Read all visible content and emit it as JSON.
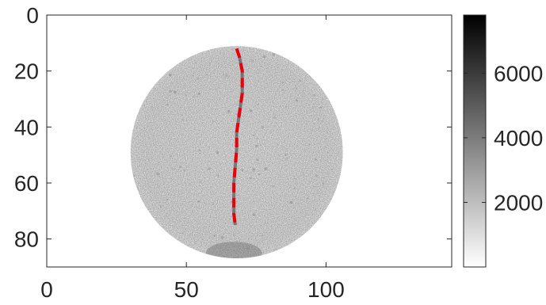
{
  "chart_data": {
    "type": "heatmap",
    "title": "",
    "xlabel": "",
    "ylabel": "",
    "xlim": [
      0,
      145
    ],
    "ylim": [
      90,
      0
    ],
    "x_ticks": [
      0,
      50,
      100
    ],
    "y_ticks": [
      0,
      20,
      40,
      60,
      80
    ],
    "colormap": "gray (white = low, black = high)",
    "colorbar": {
      "range": [
        0,
        7800
      ],
      "ticks": [
        2000,
        4000,
        6000
      ],
      "location": "right"
    },
    "disc": {
      "center_x": 68,
      "center_y": 49,
      "radius": 38
    },
    "crack_path": {
      "color": "#e8000b",
      "style": "dashed",
      "x": [
        68,
        69,
        70,
        70,
        69,
        68,
        68,
        67.5,
        67,
        67,
        67,
        67.5
      ],
      "y": [
        12,
        15,
        20,
        28,
        35,
        42,
        48,
        54,
        60,
        66,
        71,
        75
      ]
    }
  }
}
